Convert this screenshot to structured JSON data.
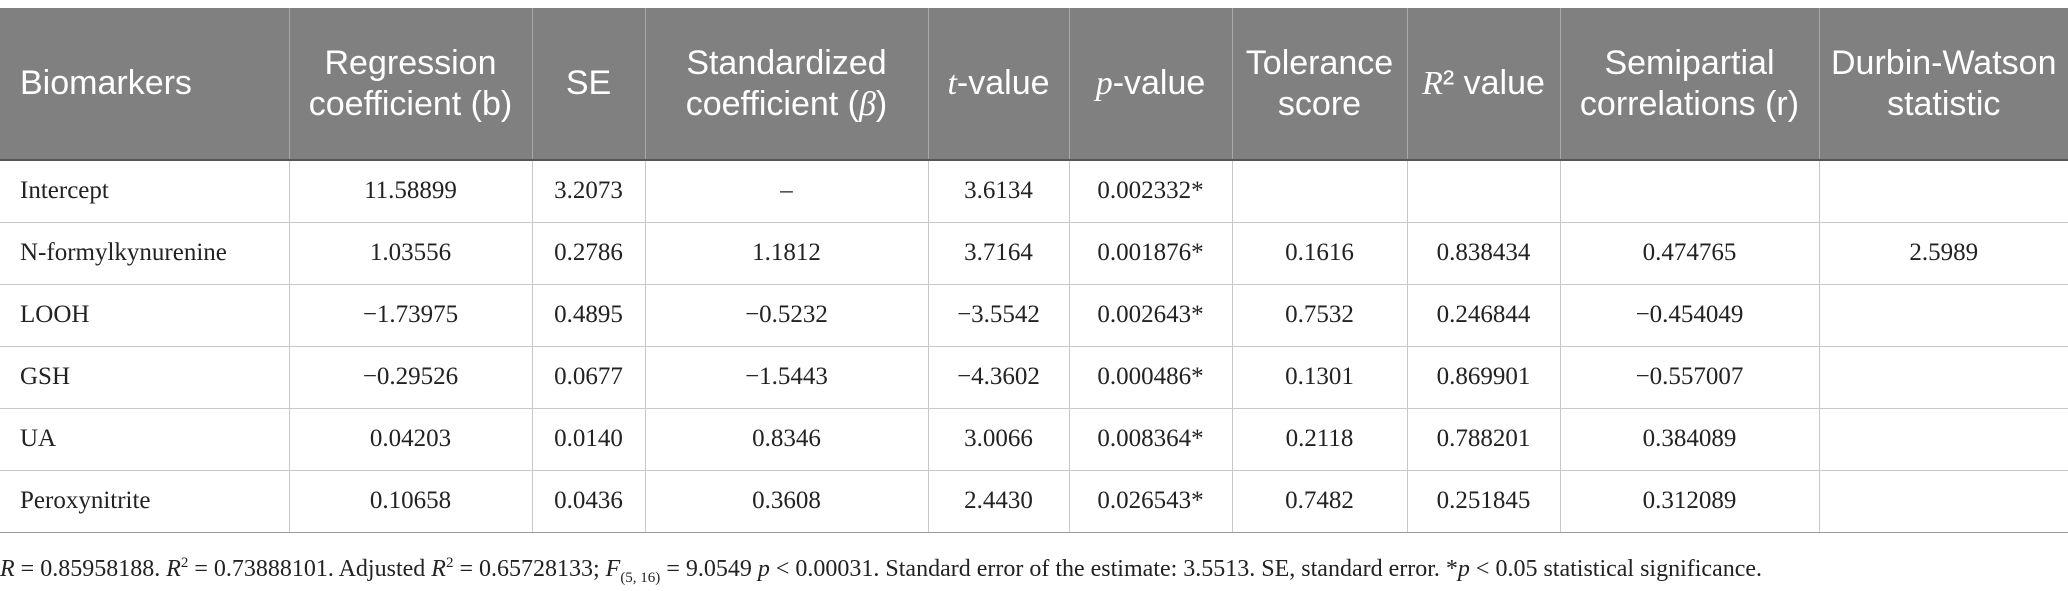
{
  "table": {
    "headers": [
      {
        "pre": "Biomarkers",
        "it": "",
        "post": ""
      },
      {
        "pre": "Regression coefficient (b)",
        "it": "",
        "post": ""
      },
      {
        "pre": "SE",
        "it": "",
        "post": ""
      },
      {
        "pre": "Standardized coefficient (",
        "it": "β",
        "post": ")"
      },
      {
        "pre": "",
        "it": "t",
        "post": "-value"
      },
      {
        "pre": "",
        "it": "p",
        "post": "-value"
      },
      {
        "pre": "Tolerance score",
        "it": "",
        "post": ""
      },
      {
        "pre": "",
        "it": "R",
        "post": "² value"
      },
      {
        "pre": "Semipartial correlations (r)",
        "it": "",
        "post": ""
      },
      {
        "pre": "Durbin-Watson statistic",
        "it": "",
        "post": ""
      }
    ],
    "rows": [
      [
        "Intercept",
        "11.58899",
        "3.2073",
        "–",
        "3.6134",
        "0.002332*",
        "",
        "",
        "",
        ""
      ],
      [
        "N-formylkynurenine",
        "1.03556",
        "0.2786",
        "1.1812",
        "3.7164",
        "0.001876*",
        "0.1616",
        "0.838434",
        "0.474765",
        "2.5989"
      ],
      [
        "LOOH",
        "−1.73975",
        "0.4895",
        "−0.5232",
        "−3.5542",
        "0.002643*",
        "0.7532",
        "0.246844",
        "−0.454049",
        ""
      ],
      [
        "GSH",
        "−0.29526",
        "0.0677",
        "−1.5443",
        "−4.3602",
        "0.000486*",
        "0.1301",
        "0.869901",
        "−0.557007",
        ""
      ],
      [
        "UA",
        "0.04203",
        "0.0140",
        "0.8346",
        "3.0066",
        "0.008364*",
        "0.2118",
        "0.788201",
        "0.384089",
        ""
      ],
      [
        "Peroxynitrite",
        "0.10658",
        "0.0436",
        "0.3608",
        "2.4430",
        "0.026543*",
        "0.7482",
        "0.251845",
        "0.312089",
        ""
      ]
    ]
  },
  "footnote": {
    "r_sym": "R",
    "r_val": " = 0.85958188. ",
    "r2_sym": "R",
    "r2_val": " = 0.73888101. Adjusted ",
    "adj_sym": "R",
    "adj_val": " = 0.65728133; ",
    "f_sym": "F",
    "f_sub": "(5, 16)",
    "f_val": " = 9.0549 ",
    "p_sym": "p",
    "p_val": " < 0.00031. Standard error of the estimate: 3.5513. SE, standard error. *",
    "p2_sym": "p",
    "p2_val": " < 0.05 statistical significance.",
    "sq": "2"
  }
}
